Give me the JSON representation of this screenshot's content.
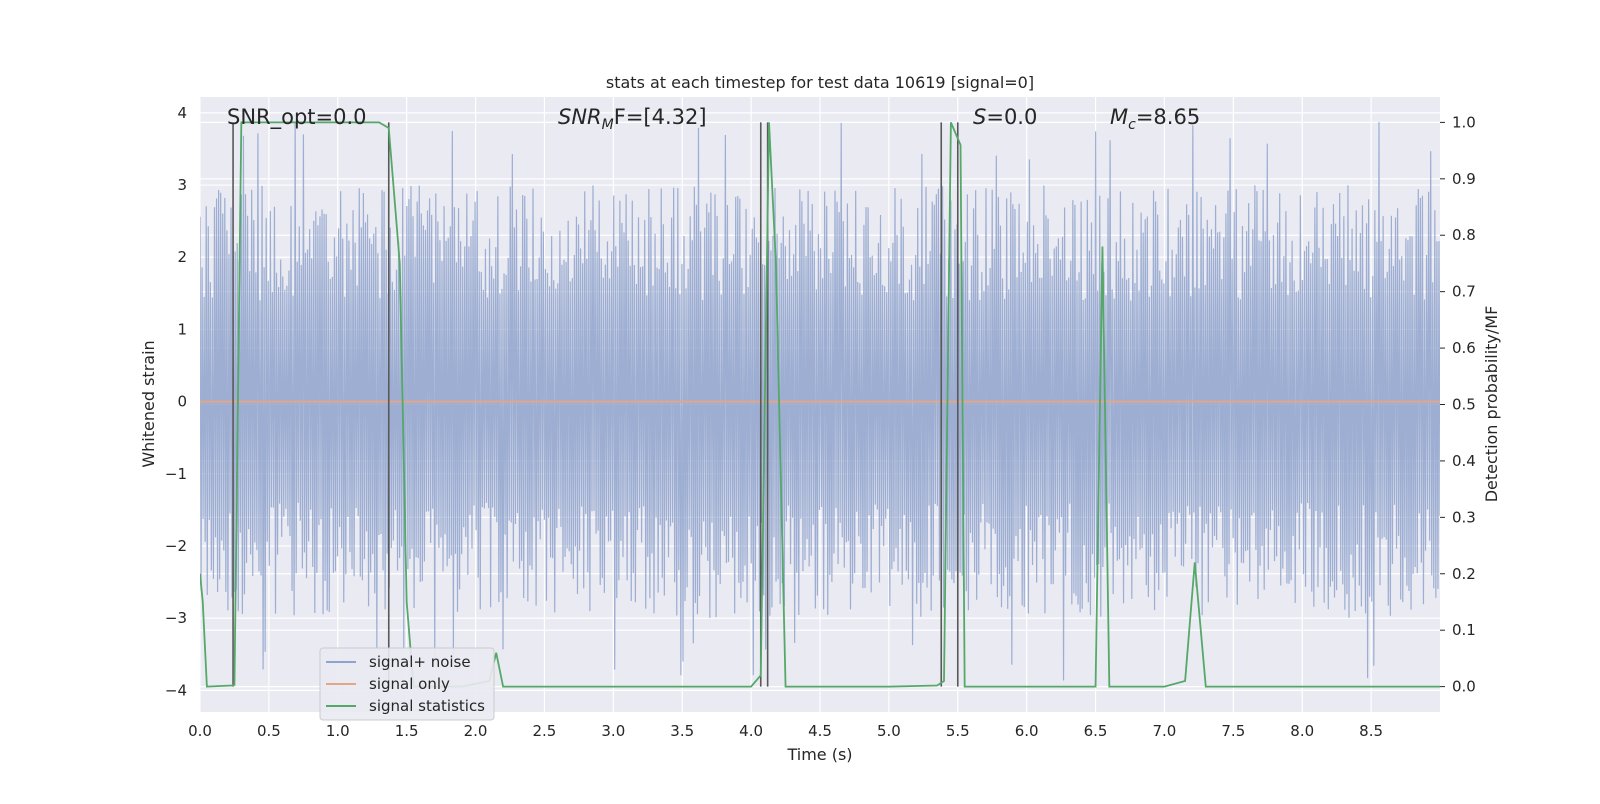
{
  "chart_data": {
    "type": "line",
    "title": "stats at each timestep for test data 10619 [signal=0]",
    "xlabel": "Time (s)",
    "ylabel": "Whitened strain",
    "ylabel_right": "Detection probability/MF",
    "xlim": [
      0.0,
      9.0
    ],
    "ylim": [
      -4.3,
      4.22
    ],
    "ylim_right": [
      -0.045,
      1.045
    ],
    "x_ticks": [
      "0.0",
      "0.5",
      "1.0",
      "1.5",
      "2.0",
      "2.5",
      "3.0",
      "3.5",
      "4.0",
      "4.5",
      "5.0",
      "5.5",
      "6.0",
      "6.5",
      "7.0",
      "7.5",
      "8.0",
      "8.5"
    ],
    "y_ticks": [
      "4",
      "3",
      "2",
      "1",
      "0",
      "−1",
      "−2",
      "−3",
      "−4"
    ],
    "y_tick_values": [
      4,
      3,
      2,
      1,
      0,
      -1,
      -2,
      -3,
      -4
    ],
    "y_right_ticks": [
      "1.0",
      "0.9",
      "0.8",
      "0.7",
      "0.6",
      "0.5",
      "0.4",
      "0.3",
      "0.2",
      "0.1",
      "0.0"
    ],
    "y_right_tick_values": [
      1.0,
      0.9,
      0.8,
      0.7,
      0.6,
      0.5,
      0.4,
      0.3,
      0.2,
      0.1,
      0.0
    ],
    "grid": true,
    "annotations": {
      "snr_opt": "SNR_opt=0.0",
      "snr_mf_main": "SNR",
      "snr_mf_sub": "M",
      "snr_mf_rest": "F=[4.32]",
      "s_main": "S",
      "s_rest": "=0.0",
      "mc_main": "M",
      "mc_sub": "c",
      "mc_rest": "=8.65"
    },
    "legend": {
      "position": "lower-left",
      "entries": [
        {
          "label": "signal+ noise",
          "color": "#8fa3cc"
        },
        {
          "label": "signal only",
          "color": "#e4a688"
        },
        {
          "label": "signal statistics",
          "color": "#55a868"
        }
      ]
    },
    "series": [
      {
        "name": "signal+ noise",
        "axis": "left",
        "noise_envelope": {
          "typical_peak_range": [
            1.4,
            3.0
          ],
          "max": 3.9,
          "min": -4.0,
          "samples": 1200
        }
      },
      {
        "name": "signal only",
        "axis": "left",
        "x": [
          0.0,
          9.0
        ],
        "y": [
          0.0,
          0.0
        ]
      },
      {
        "name": "signal statistics",
        "axis": "right",
        "x": [
          0.0,
          0.02,
          0.05,
          0.23,
          0.25,
          0.3,
          0.4,
          1.3,
          1.37,
          1.45,
          1.5,
          1.55,
          1.6,
          1.7,
          1.8,
          1.9,
          2.0,
          2.1,
          2.15,
          2.2,
          2.3,
          3.0,
          3.5,
          4.0,
          4.07,
          4.13,
          4.18,
          4.25,
          4.3,
          5.0,
          5.35,
          5.4,
          5.45,
          5.52,
          5.55,
          5.6,
          6.0,
          6.5,
          6.55,
          6.6,
          6.65,
          7.0,
          7.15,
          7.22,
          7.3,
          7.4,
          8.0,
          9.0
        ],
        "y": [
          0.2,
          0.15,
          0.0,
          0.002,
          0.003,
          1.0,
          1.0,
          1.0,
          0.99,
          0.75,
          0.15,
          0.0,
          0.0,
          0.0,
          0.0,
          0.0,
          0.005,
          0.01,
          0.06,
          0.0,
          0.0,
          0.0,
          0.0,
          0.0,
          0.02,
          1.0,
          0.75,
          0.0,
          0.0,
          0.0,
          0.002,
          0.01,
          1.0,
          0.96,
          0.0,
          0.0,
          0.0,
          0.0,
          0.78,
          0.0,
          0.0,
          0.0,
          0.01,
          0.22,
          0.0,
          0.0,
          0.0,
          0.0
        ]
      }
    ],
    "vertical_lines": [
      0.24,
      1.37,
      4.07,
      4.12,
      5.38,
      5.5
    ]
  }
}
